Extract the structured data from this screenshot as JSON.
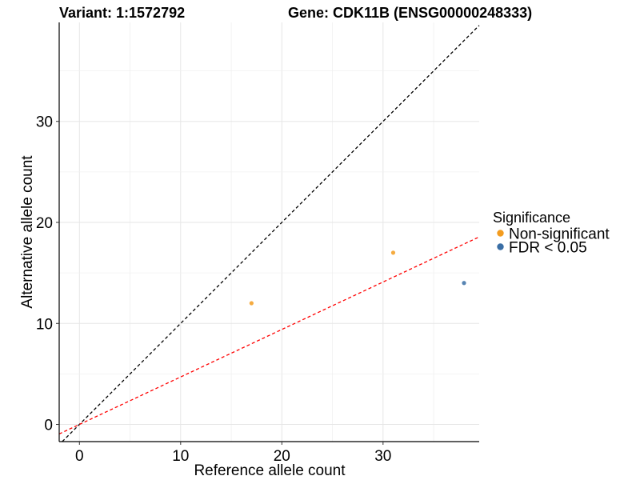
{
  "chart_data": {
    "type": "scatter",
    "title_left": "Variant: 1:1572792",
    "title_right": "Gene: CDK11B (ENSG00000248333)",
    "xlabel": "Reference allele count",
    "ylabel": "Alternative allele count",
    "xlim": [
      -2,
      39.5
    ],
    "ylim": [
      -1.7,
      39.8
    ],
    "x_ticks": [
      0,
      10,
      20,
      30
    ],
    "y_ticks": [
      0,
      10,
      20,
      30
    ],
    "grid": true,
    "legend": {
      "title": "Significance",
      "position": "right",
      "entries": [
        {
          "label": "Non-significant",
          "color": "#F39C1F"
        },
        {
          "label": "FDR < 0.05",
          "color": "#3A6EA5"
        }
      ]
    },
    "points": [
      {
        "x": 17,
        "y": 12,
        "group": "Non-significant"
      },
      {
        "x": 31,
        "y": 17,
        "group": "Non-significant"
      },
      {
        "x": 38,
        "y": 14,
        "group": "FDR < 0.05"
      }
    ],
    "reference_lines": [
      {
        "slope": 1,
        "intercept": 0,
        "color": "#000000",
        "style": "dashed"
      },
      {
        "slope": 0.47,
        "intercept": 0,
        "color": "#FF0000",
        "style": "dashed"
      }
    ]
  }
}
